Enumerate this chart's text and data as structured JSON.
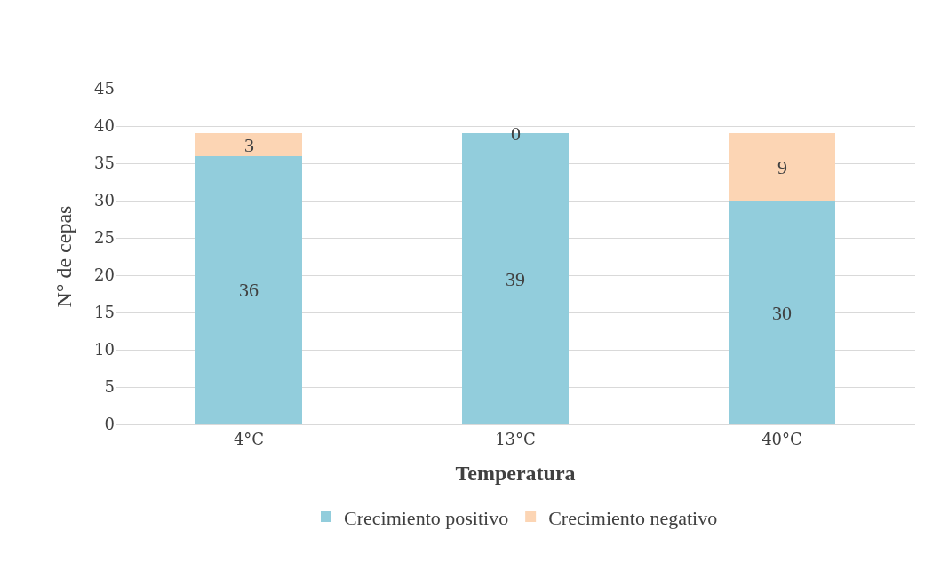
{
  "chart_data": {
    "type": "bar",
    "stacked": true,
    "xlabel": "Temperatura",
    "ylabel": "N° de cepas",
    "categories": [
      "4°C",
      "13°C",
      "40°C"
    ],
    "series": [
      {
        "name": "Crecimiento positivo",
        "color": "#92cddc",
        "values": [
          36,
          39,
          30
        ]
      },
      {
        "name": "Crecimiento negativo",
        "color": "#fcd5b4",
        "values": [
          3,
          0,
          9
        ]
      }
    ],
    "ylim": [
      0,
      45
    ],
    "yticks": [
      0,
      5,
      10,
      15,
      20,
      25,
      30,
      35,
      40,
      45
    ],
    "grid": "y",
    "legend": "bottom",
    "data_labels": true
  }
}
